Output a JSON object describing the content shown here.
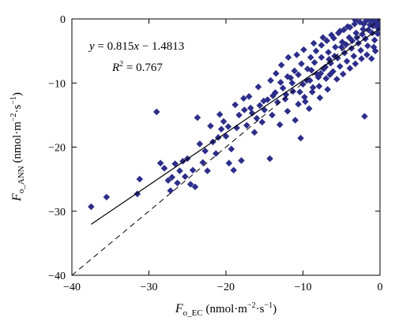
{
  "chart_data": {
    "type": "scatter",
    "xlabel": {
      "base": "F",
      "sub": "o_EC",
      "unit_pre": " (nmol·m",
      "unit_sup1": "−2",
      "unit_mid": "·s",
      "unit_sup2": "−1",
      "unit_post": ")"
    },
    "ylabel": {
      "base": "F",
      "sub": "o_ANN",
      "unit_pre": " (nmol·m",
      "unit_sup1": "−2",
      "unit_mid": "·s",
      "unit_sup2": "−1",
      "unit_post": ")"
    },
    "xlim": [
      -40,
      0
    ],
    "ylim": [
      -40,
      0
    ],
    "xticks": [
      -40,
      -30,
      -20,
      -10,
      0
    ],
    "yticks": [
      -40,
      -30,
      -20,
      -10,
      0
    ],
    "equation": {
      "y": "y",
      "eq": " = 0.815",
      "x": "x",
      "rest": " − 1.4813"
    },
    "r2": {
      "r": "R",
      "sup": "2",
      "rest": " = 0.767"
    },
    "regression": {
      "slope": 0.815,
      "intercept": -1.4813,
      "x_range": [
        -37.5,
        0
      ]
    },
    "one_to_one": {
      "x_range": [
        -40,
        0
      ]
    },
    "marker_color": "#2d2d8a",
    "points": [
      [
        -37.5,
        -29.3
      ],
      [
        -35.5,
        -27.8
      ],
      [
        -31.5,
        -27.3
      ],
      [
        -31.2,
        -25.0
      ],
      [
        -29.0,
        -14.5
      ],
      [
        -28.5,
        -22.5
      ],
      [
        -28.0,
        -23.3
      ],
      [
        -27.5,
        -25.2
      ],
      [
        -27.2,
        -26.8
      ],
      [
        -27.0,
        -24.7
      ],
      [
        -26.6,
        -22.6
      ],
      [
        -26.3,
        -25.6
      ],
      [
        -26.0,
        -23.7
      ],
      [
        -25.6,
        -22.2
      ],
      [
        -25.3,
        -24.6
      ],
      [
        -25.0,
        -21.8
      ],
      [
        -24.6,
        -25.8
      ],
      [
        -24.3,
        -23.6
      ],
      [
        -24.0,
        -26.2
      ],
      [
        -23.7,
        -15.4
      ],
      [
        -23.4,
        -19.5
      ],
      [
        -23.0,
        -22.4
      ],
      [
        -22.7,
        -20.6
      ],
      [
        -22.4,
        -23.7
      ],
      [
        -22.0,
        -16.7
      ],
      [
        -21.7,
        -19.2
      ],
      [
        -21.3,
        -21.0
      ],
      [
        -21.0,
        -18.5
      ],
      [
        -20.6,
        -17.2
      ],
      [
        -20.3,
        -16.0
      ],
      [
        -20.0,
        -18.3
      ],
      [
        -19.6,
        -22.5
      ],
      [
        -19.3,
        -20.3
      ],
      [
        -19.0,
        -23.6
      ],
      [
        -18.6,
        -17.0
      ],
      [
        -18.3,
        -15.0
      ],
      [
        -18.0,
        -22.1
      ],
      [
        -17.6,
        -14.2
      ],
      [
        -17.3,
        -16.6
      ],
      [
        -17.0,
        -12.1
      ],
      [
        -16.6,
        -14.7
      ],
      [
        -16.3,
        -17.7
      ],
      [
        -16.0,
        -15.5
      ],
      [
        -15.6,
        -13.5
      ],
      [
        -15.3,
        -16.1
      ],
      [
        -15.0,
        -14.2
      ],
      [
        -14.6,
        -12.6
      ],
      [
        -14.3,
        -21.8
      ],
      [
        -14.0,
        -15.0
      ],
      [
        -13.6,
        -11.5
      ],
      [
        -13.3,
        -13.0
      ],
      [
        -13.0,
        -16.5
      ],
      [
        -12.6,
        -10.8
      ],
      [
        -12.3,
        -12.5
      ],
      [
        -12.0,
        -14.4
      ],
      [
        -11.6,
        -9.2
      ],
      [
        -11.3,
        -11.3
      ],
      [
        -11.0,
        -15.8
      ],
      [
        -10.6,
        -8.7
      ],
      [
        -10.3,
        -18.6
      ],
      [
        -10.0,
        -10.2
      ],
      [
        -9.7,
        -12.9
      ],
      [
        -9.4,
        -7.8
      ],
      [
        -9.1,
        -9.6
      ],
      [
        -8.8,
        -11.4
      ],
      [
        -8.5,
        -6.8
      ],
      [
        -8.2,
        -8.6
      ],
      [
        -7.9,
        -10.5
      ],
      [
        -7.6,
        -6.0
      ],
      [
        -7.3,
        -7.8
      ],
      [
        -7.0,
        -9.3
      ],
      [
        -6.7,
        -5.2
      ],
      [
        -6.4,
        -6.9
      ],
      [
        -6.1,
        -8.2
      ],
      [
        -5.8,
        -4.4
      ],
      [
        -5.5,
        -6.1
      ],
      [
        -5.2,
        -7.4
      ],
      [
        -4.9,
        -3.6
      ],
      [
        -4.6,
        -5.3
      ],
      [
        -4.3,
        -6.6
      ],
      [
        -4.0,
        -2.9
      ],
      [
        -3.7,
        -4.6
      ],
      [
        -3.4,
        -5.8
      ],
      [
        -3.1,
        -2.2
      ],
      [
        -2.8,
        -3.8
      ],
      [
        -2.5,
        -4.9
      ],
      [
        -2.2,
        -1.6
      ],
      [
        -1.9,
        -3.1
      ],
      [
        -1.6,
        -4.2
      ],
      [
        -1.3,
        -0.9
      ],
      [
        -1.0,
        -2.2
      ],
      [
        -0.7,
        -3.3
      ],
      [
        -0.4,
        -0.4
      ],
      [
        -0.2,
        -1.5
      ],
      [
        -2.0,
        -15.2
      ],
      [
        -13.5,
        -8.5
      ],
      [
        -12.8,
        -7.2
      ],
      [
        -11.9,
        -6.0
      ],
      [
        -10.8,
        -5.6
      ],
      [
        -9.9,
        -4.8
      ],
      [
        -15.8,
        -10.6
      ],
      [
        -14.2,
        -9.6
      ],
      [
        -8.6,
        -3.8
      ],
      [
        -7.4,
        -2.9
      ],
      [
        -6.3,
        -2.5
      ],
      [
        -5.2,
        -1.9
      ],
      [
        -4.2,
        -1.2
      ],
      [
        -3.3,
        -0.8
      ],
      [
        -2.6,
        -0.5
      ],
      [
        -1.8,
        -0.3
      ],
      [
        -18.8,
        -13.4
      ],
      [
        -17.7,
        -12.4
      ],
      [
        -16.8,
        -13.9
      ],
      [
        -19.7,
        -16.8
      ],
      [
        -20.8,
        -14.9
      ],
      [
        -12.2,
        -11.8
      ],
      [
        -11.4,
        -10.0
      ],
      [
        -10.4,
        -11.4
      ],
      [
        -9.5,
        -9.6
      ],
      [
        -8.9,
        -8.0
      ],
      [
        -8.0,
        -9.1
      ],
      [
        -7.1,
        -7.5
      ],
      [
        -6.6,
        -6.3
      ],
      [
        -5.9,
        -5.8
      ],
      [
        -5.0,
        -4.4
      ],
      [
        -4.4,
        -4.0
      ],
      [
        -3.6,
        -3.4
      ],
      [
        -3.0,
        -2.9
      ],
      [
        -2.3,
        -2.4
      ],
      [
        -1.5,
        -1.7
      ],
      [
        -0.9,
        -1.1
      ],
      [
        -0.5,
        -0.7
      ],
      [
        -0.3,
        -2.3
      ],
      [
        -0.6,
        -5.0
      ],
      [
        -1.1,
        -6.2
      ],
      [
        -9.2,
        -14.0
      ],
      [
        -7.8,
        -12.3
      ],
      [
        -6.8,
        -11.0
      ],
      [
        -5.6,
        -9.4
      ],
      [
        -4.8,
        -8.6
      ],
      [
        -3.9,
        -7.7
      ],
      [
        -3.2,
        -7.0
      ],
      [
        -2.4,
        -6.2
      ],
      [
        -1.7,
        -5.6
      ],
      [
        -0.8,
        -4.4
      ],
      [
        -10.2,
        -7.0
      ],
      [
        -9.0,
        -6.0
      ],
      [
        -8.3,
        -5.0
      ],
      [
        -7.6,
        -4.1
      ],
      [
        -6.9,
        -3.4
      ],
      [
        -6.0,
        -3.0
      ],
      [
        -5.4,
        -2.2
      ],
      [
        -4.7,
        -1.7
      ],
      [
        -3.9,
        -1.3
      ],
      [
        -3.2,
        -0.2
      ],
      [
        -2.1,
        -0.8
      ],
      [
        -1.4,
        -0.1
      ],
      [
        -0.9,
        -0.3
      ],
      [
        -0.4,
        -1.2
      ],
      [
        -0.1,
        -0.6
      ],
      [
        -15.1,
        -12.8
      ],
      [
        -13.9,
        -12.0
      ],
      [
        -12.9,
        -9.9
      ],
      [
        -12.0,
        -9.0
      ],
      [
        -11.1,
        -8.1
      ],
      [
        -10.6,
        -13.3
      ],
      [
        -9.8,
        -12.2
      ],
      [
        -8.7,
        -10.7
      ],
      [
        -7.7,
        -8.5
      ],
      [
        -6.5,
        -8.7
      ]
    ]
  }
}
